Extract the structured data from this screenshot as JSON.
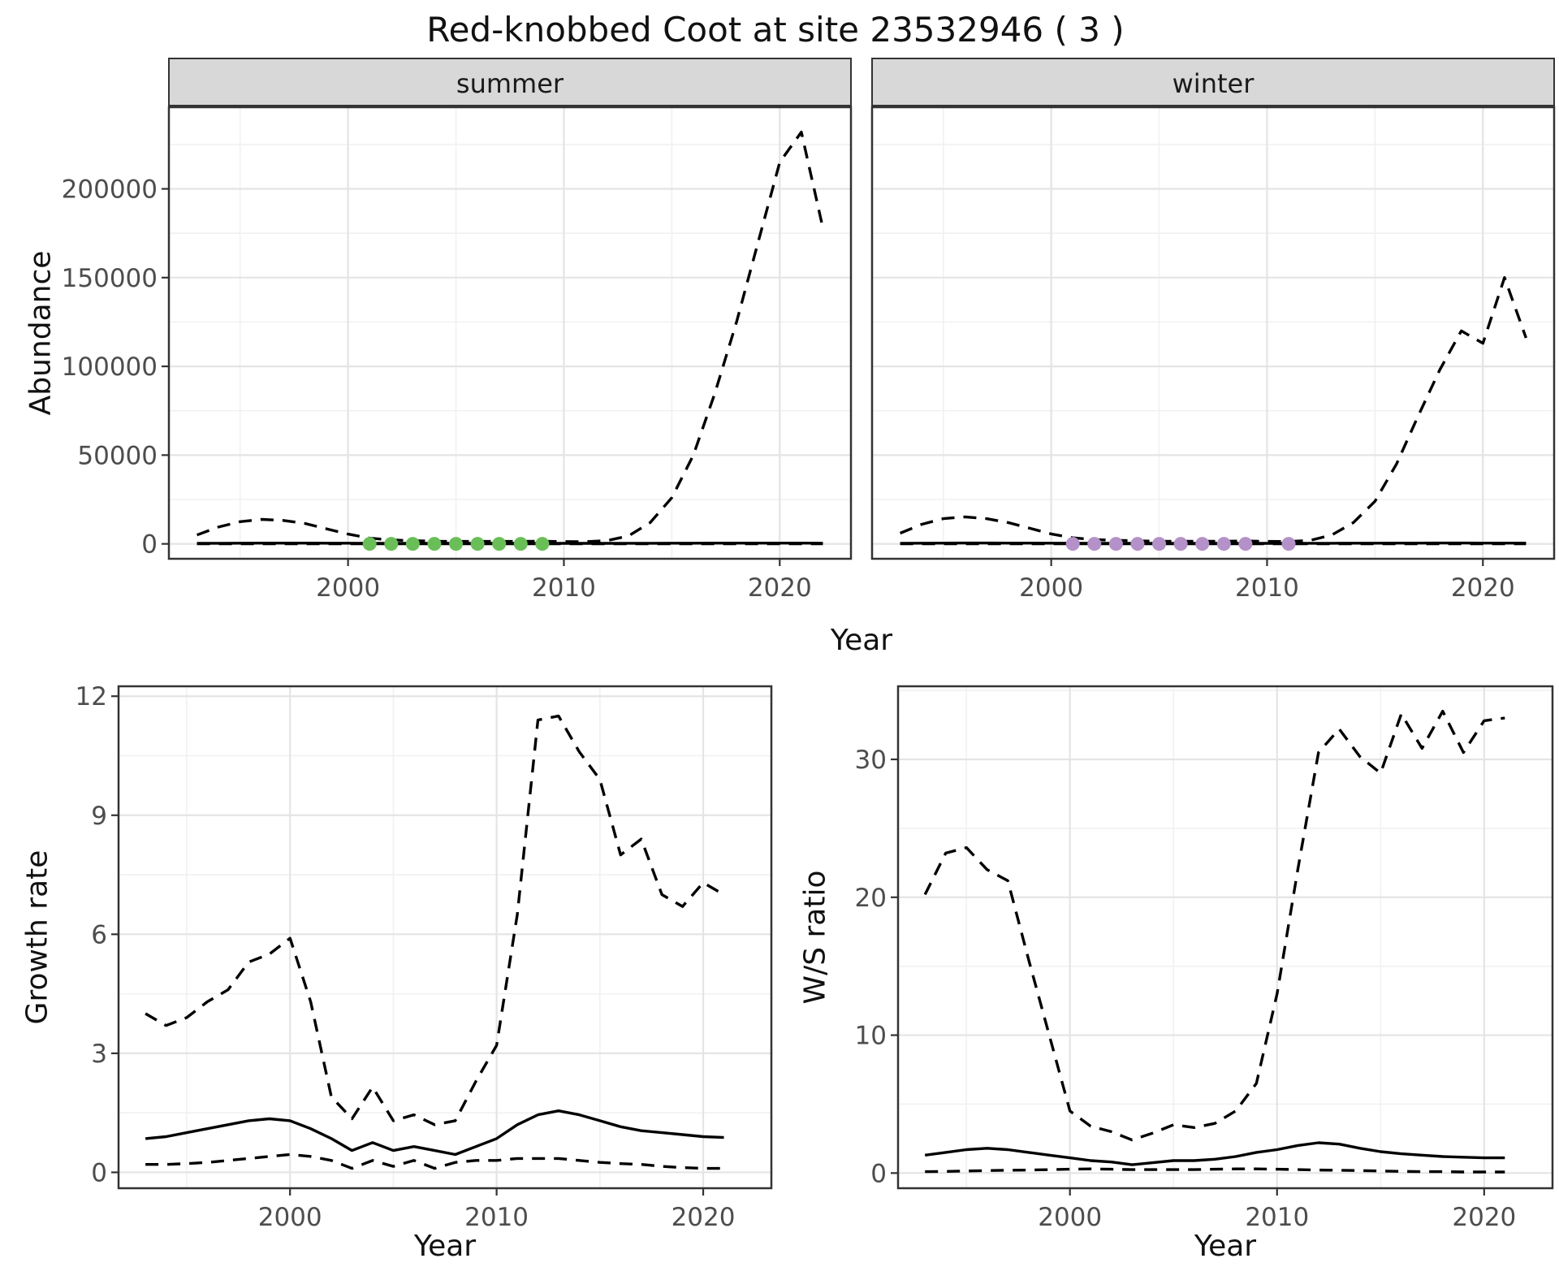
{
  "title": "Red-knobbed Coot at site 23532946 ( 3 )",
  "style": {
    "strip_bg": "#d8d8d8",
    "grid_major": "#e4e4e4",
    "grid_minor": "#f1f1f1",
    "axis_text": "#4d4d4d",
    "border": "#333333",
    "line_color": "#000000",
    "summer_point_color": "#6abe58",
    "winter_point_color": "#b491c8"
  },
  "chart_data": [
    {
      "id": "abundance_summer",
      "type": "line",
      "facet_label": "summer",
      "xlabel": "Year",
      "ylabel": "Abundance",
      "xlim": [
        1991.7,
        2023.3
      ],
      "ylim": [
        -8400,
        246000
      ],
      "xticks": [
        2000,
        2010,
        2020
      ],
      "yticks": [
        0,
        50000,
        100000,
        150000,
        200000
      ],
      "x": [
        1993,
        1994,
        1995,
        1996,
        1997,
        1998,
        1999,
        2000,
        2001,
        2002,
        2003,
        2004,
        2005,
        2006,
        2007,
        2008,
        2009,
        2010,
        2011,
        2012,
        2013,
        2014,
        2015,
        2016,
        2017,
        2018,
        2019,
        2020,
        2021,
        2022
      ],
      "series": [
        {
          "name": "upper_ci",
          "style": "dashed",
          "color": "#000000",
          "values": [
            5000,
            9500,
            12500,
            13800,
            13200,
            11500,
            8500,
            5500,
            3200,
            2200,
            1800,
            1500,
            1400,
            1400,
            1400,
            1400,
            1500,
            1300,
            1200,
            1800,
            4500,
            12000,
            26000,
            50000,
            85000,
            125000,
            170000,
            215000,
            232000,
            178000
          ]
        },
        {
          "name": "median",
          "style": "solid",
          "color": "#000000",
          "values": [
            300,
            350,
            400,
            420,
            430,
            420,
            400,
            380,
            350,
            330,
            320,
            310,
            300,
            300,
            300,
            300,
            300,
            300,
            300,
            300,
            320,
            350,
            380,
            400,
            420,
            430,
            430,
            420,
            410,
            400
          ]
        },
        {
          "name": "lower_ci",
          "style": "dashed",
          "color": "#000000",
          "values": [
            80,
            80,
            80,
            80,
            80,
            80,
            80,
            80,
            80,
            80,
            80,
            80,
            80,
            80,
            80,
            80,
            80,
            80,
            80,
            80,
            80,
            80,
            80,
            80,
            80,
            80,
            80,
            80,
            80,
            80
          ]
        },
        {
          "name": "observed_counts",
          "style": "points",
          "color": "#6abe58",
          "x": [
            2001,
            2002,
            2003,
            2004,
            2005,
            2006,
            2007,
            2008,
            2009
          ],
          "values": [
            0,
            0,
            0,
            0,
            0,
            0,
            0,
            0,
            0
          ]
        }
      ]
    },
    {
      "id": "abundance_winter",
      "type": "line",
      "facet_label": "winter",
      "xlabel": "Year",
      "ylabel": "Abundance",
      "xlim": [
        1991.7,
        2023.3
      ],
      "ylim": [
        -8400,
        246000
      ],
      "xticks": [
        2000,
        2010,
        2020
      ],
      "yticks": [
        0,
        50000,
        100000,
        150000,
        200000
      ],
      "x": [
        1993,
        1994,
        1995,
        1996,
        1997,
        1998,
        1999,
        2000,
        2001,
        2002,
        2003,
        2004,
        2005,
        2006,
        2007,
        2008,
        2009,
        2010,
        2011,
        2012,
        2013,
        2014,
        2015,
        2016,
        2017,
        2018,
        2019,
        2020,
        2021,
        2022
      ],
      "series": [
        {
          "name": "upper_ci",
          "style": "dashed",
          "color": "#000000",
          "values": [
            6000,
            11000,
            14200,
            15200,
            14200,
            12000,
            8800,
            5600,
            3400,
            2400,
            2000,
            1700,
            1500,
            1500,
            1500,
            1500,
            1600,
            1400,
            1300,
            2000,
            5000,
            12000,
            24000,
            45000,
            72000,
            98000,
            120000,
            113000,
            150000,
            116000
          ]
        },
        {
          "name": "median",
          "style": "solid",
          "color": "#000000",
          "values": [
            350,
            400,
            450,
            470,
            460,
            450,
            430,
            400,
            370,
            350,
            330,
            320,
            310,
            310,
            310,
            310,
            310,
            310,
            310,
            320,
            340,
            370,
            400,
            430,
            450,
            460,
            460,
            450,
            440,
            430
          ]
        },
        {
          "name": "lower_ci",
          "style": "dashed",
          "color": "#000000",
          "values": [
            80,
            80,
            80,
            80,
            80,
            80,
            80,
            80,
            80,
            80,
            80,
            80,
            80,
            80,
            80,
            80,
            80,
            80,
            80,
            80,
            80,
            80,
            80,
            80,
            80,
            80,
            80,
            80,
            80,
            80
          ]
        },
        {
          "name": "observed_counts",
          "style": "points",
          "color": "#b491c8",
          "x": [
            2001,
            2002,
            2003,
            2004,
            2005,
            2006,
            2007,
            2008,
            2009,
            2011
          ],
          "values": [
            0,
            0,
            0,
            0,
            0,
            0,
            0,
            0,
            0,
            0
          ]
        }
      ]
    },
    {
      "id": "growth_rate",
      "type": "line",
      "facet_label": "",
      "xlabel": "Year",
      "ylabel": "Growth rate",
      "xlim": [
        1991.7,
        2023.3
      ],
      "ylim": [
        -0.4,
        12.25
      ],
      "xticks": [
        2000,
        2010,
        2020
      ],
      "yticks": [
        0,
        3,
        6,
        9,
        12
      ],
      "x": [
        1993,
        1994,
        1995,
        1996,
        1997,
        1998,
        1999,
        2000,
        2001,
        2002,
        2003,
        2004,
        2005,
        2006,
        2007,
        2008,
        2009,
        2010,
        2011,
        2012,
        2013,
        2014,
        2015,
        2016,
        2017,
        2018,
        2019,
        2020,
        2021
      ],
      "series": [
        {
          "name": "upper_ci",
          "style": "dashed",
          "color": "#000000",
          "values": [
            4.0,
            3.7,
            3.9,
            4.3,
            4.6,
            5.3,
            5.5,
            5.9,
            4.3,
            1.9,
            1.35,
            2.15,
            1.3,
            1.45,
            1.2,
            1.3,
            2.3,
            3.2,
            6.5,
            11.4,
            11.5,
            10.6,
            9.9,
            8.0,
            8.4,
            7.0,
            6.7,
            7.3,
            7.0
          ]
        },
        {
          "name": "median",
          "style": "solid",
          "color": "#000000",
          "values": [
            0.85,
            0.9,
            1.0,
            1.1,
            1.2,
            1.3,
            1.35,
            1.3,
            1.1,
            0.85,
            0.55,
            0.75,
            0.55,
            0.65,
            0.55,
            0.45,
            0.65,
            0.85,
            1.2,
            1.45,
            1.55,
            1.45,
            1.3,
            1.15,
            1.05,
            1.0,
            0.95,
            0.9,
            0.88
          ]
        },
        {
          "name": "lower_ci",
          "style": "dashed",
          "color": "#000000",
          "values": [
            0.2,
            0.2,
            0.22,
            0.25,
            0.3,
            0.35,
            0.4,
            0.45,
            0.4,
            0.3,
            0.1,
            0.3,
            0.15,
            0.3,
            0.1,
            0.25,
            0.3,
            0.3,
            0.35,
            0.35,
            0.35,
            0.3,
            0.25,
            0.22,
            0.2,
            0.15,
            0.12,
            0.1,
            0.1
          ]
        }
      ]
    },
    {
      "id": "ws_ratio",
      "type": "line",
      "facet_label": "",
      "xlabel": "Year",
      "ylabel": "W/S ratio",
      "xlim": [
        1991.7,
        2023.3
      ],
      "ylim": [
        -1.1,
        35.3
      ],
      "xticks": [
        2000,
        2010,
        2020
      ],
      "yticks": [
        0,
        10,
        20,
        30
      ],
      "x": [
        1993,
        1994,
        1995,
        1996,
        1997,
        1998,
        1999,
        2000,
        2001,
        2002,
        2003,
        2004,
        2005,
        2006,
        2007,
        2008,
        2009,
        2010,
        2011,
        2012,
        2013,
        2014,
        2015,
        2016,
        2017,
        2018,
        2019,
        2020,
        2021
      ],
      "series": [
        {
          "name": "upper_ci",
          "style": "dashed",
          "color": "#000000",
          "values": [
            20.2,
            23.2,
            23.6,
            22.0,
            21.2,
            15.5,
            10.0,
            4.5,
            3.4,
            3.0,
            2.4,
            2.9,
            3.5,
            3.3,
            3.6,
            4.5,
            6.5,
            13.0,
            22.0,
            30.5,
            32.2,
            30.2,
            29.0,
            33.3,
            30.8,
            33.5,
            30.5,
            32.8,
            33.0
          ]
        },
        {
          "name": "median",
          "style": "solid",
          "color": "#000000",
          "values": [
            1.3,
            1.5,
            1.7,
            1.8,
            1.7,
            1.5,
            1.3,
            1.1,
            0.9,
            0.8,
            0.6,
            0.75,
            0.9,
            0.9,
            1.0,
            1.2,
            1.5,
            1.7,
            2.0,
            2.2,
            2.1,
            1.8,
            1.55,
            1.4,
            1.3,
            1.2,
            1.15,
            1.1,
            1.1
          ]
        },
        {
          "name": "lower_ci",
          "style": "dashed",
          "color": "#000000",
          "values": [
            0.1,
            0.12,
            0.15,
            0.18,
            0.2,
            0.22,
            0.25,
            0.28,
            0.3,
            0.28,
            0.25,
            0.25,
            0.25,
            0.25,
            0.28,
            0.3,
            0.3,
            0.28,
            0.25,
            0.22,
            0.2,
            0.18,
            0.15,
            0.12,
            0.1,
            0.1,
            0.08,
            0.08,
            0.08
          ]
        }
      ]
    }
  ]
}
